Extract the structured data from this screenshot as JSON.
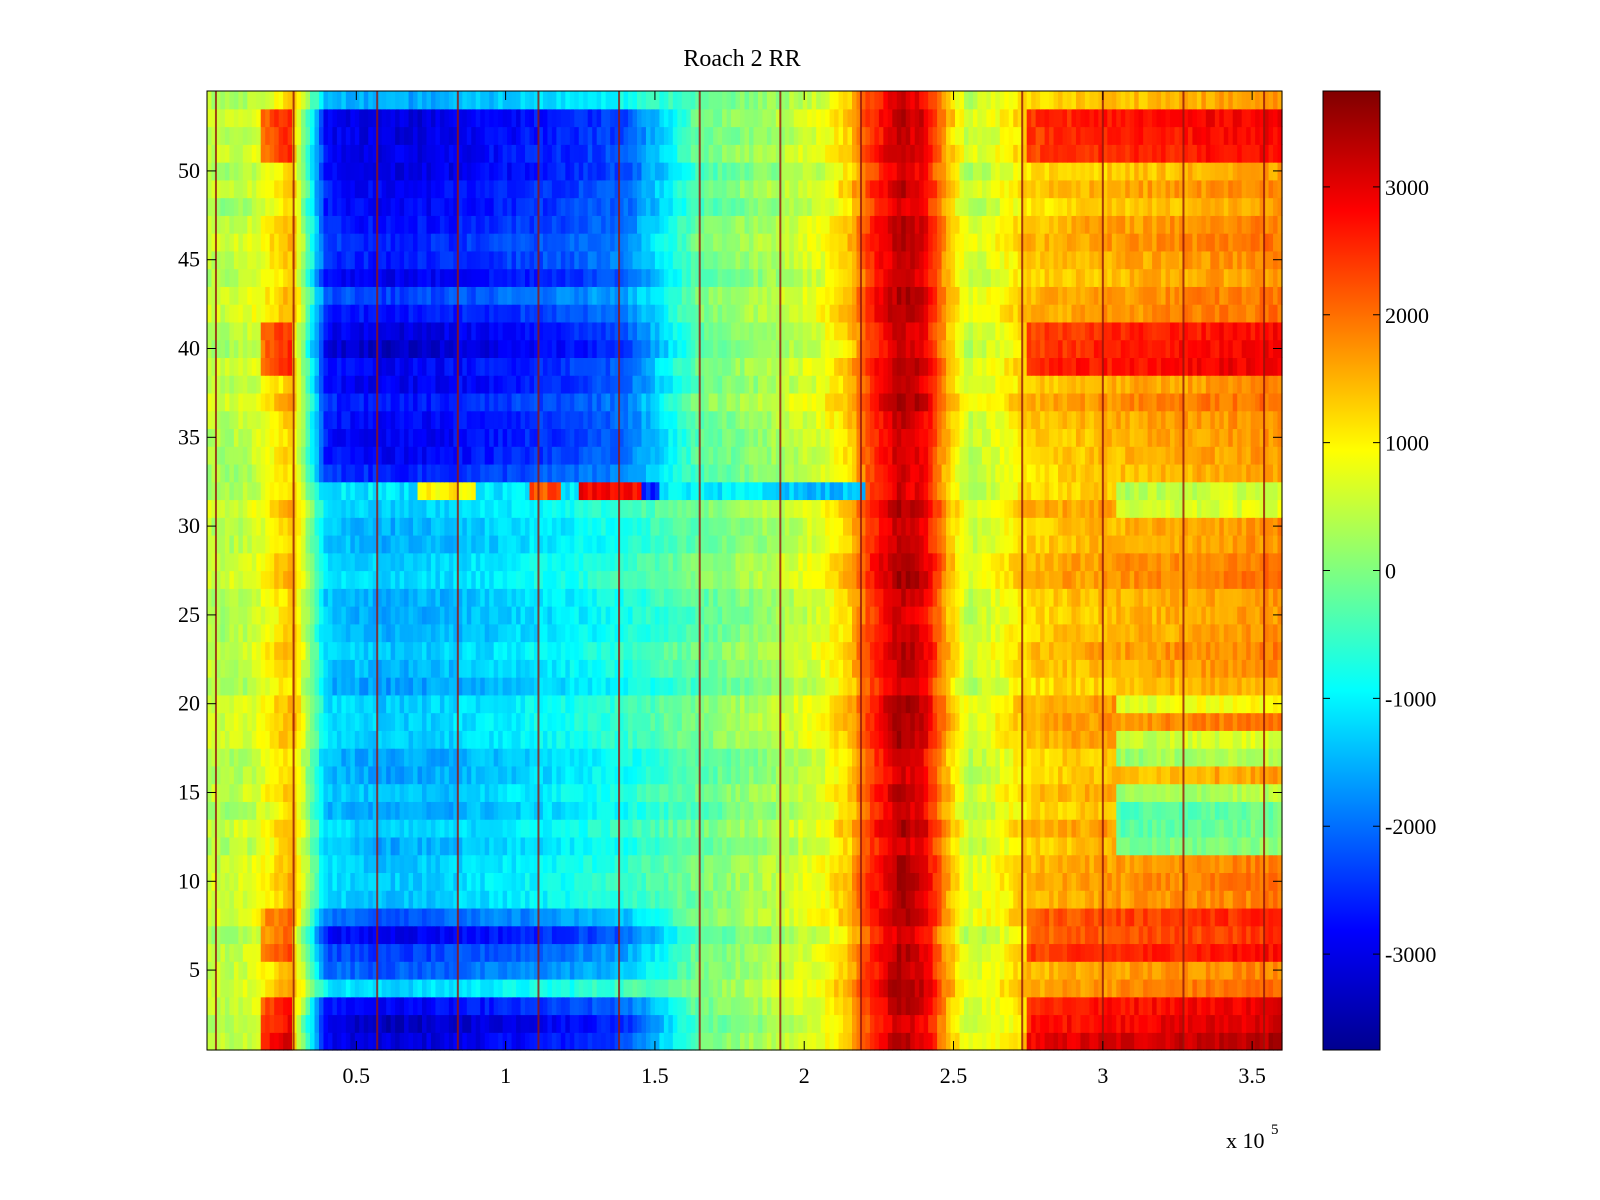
{
  "chart_data": {
    "type": "heatmap",
    "title": "Roach 2 RR",
    "xlabel": "",
    "ylabel": "",
    "x_multiplier_label": "x 10",
    "x_multiplier_exponent": "5",
    "xlim": [
      0,
      360000
    ],
    "ylim": [
      0.5,
      54.5
    ],
    "x_ticks": [
      {
        "value": 50000,
        "label": "0.5"
      },
      {
        "value": 100000,
        "label": "1"
      },
      {
        "value": 150000,
        "label": "1.5"
      },
      {
        "value": 200000,
        "label": "2"
      },
      {
        "value": 250000,
        "label": "2.5"
      },
      {
        "value": 300000,
        "label": "3"
      },
      {
        "value": 350000,
        "label": "3.5"
      }
    ],
    "y_ticks": [
      {
        "value": 5,
        "label": "5"
      },
      {
        "value": 10,
        "label": "10"
      },
      {
        "value": 15,
        "label": "15"
      },
      {
        "value": 20,
        "label": "20"
      },
      {
        "value": 25,
        "label": "25"
      },
      {
        "value": 30,
        "label": "30"
      },
      {
        "value": 35,
        "label": "35"
      },
      {
        "value": 40,
        "label": "40"
      },
      {
        "value": 45,
        "label": "45"
      },
      {
        "value": 50,
        "label": "50"
      }
    ],
    "colorbar": {
      "colormap": "jet",
      "clim": [
        -3750,
        3750
      ],
      "ticks": [
        {
          "value": 3000,
          "label": "3000"
        },
        {
          "value": 2000,
          "label": "2000"
        },
        {
          "value": 1000,
          "label": "1000"
        },
        {
          "value": 0,
          "label": "0"
        },
        {
          "value": -1000,
          "label": "-1000"
        },
        {
          "value": -2000,
          "label": "-2000"
        },
        {
          "value": -3000,
          "label": "-3000"
        }
      ]
    },
    "rows": 54,
    "column_x": [
      0,
      5000,
      15000,
      25000,
      29000,
      40000,
      60000,
      80000,
      100000,
      120000,
      140000,
      160000,
      175000,
      190000,
      205000,
      215000,
      222000,
      232000,
      240000,
      248000,
      255000,
      265000,
      275000,
      285000,
      300000,
      320000,
      340000,
      360000
    ],
    "column_profile": [
      500,
      350,
      550,
      1200,
      1400,
      -1300,
      -1500,
      -1400,
      -1200,
      -1000,
      -700,
      -300,
      0,
      300,
      700,
      1300,
      2400,
      3300,
      3000,
      1500,
      500,
      800,
      1300,
      1400,
      1500,
      1600,
      1700,
      1800
    ],
    "blue_band_rows": [
      {
        "row": 1,
        "strength": 1.0
      },
      {
        "row": 2,
        "strength": 1.0
      },
      {
        "row": 3,
        "strength": 0.85
      },
      {
        "row": 5,
        "strength": 0.45
      },
      {
        "row": 6,
        "strength": 0.6
      },
      {
        "row": 7,
        "strength": 0.75
      },
      {
        "row": 8,
        "strength": 0.5
      },
      {
        "row": 33,
        "strength": 0.55
      },
      {
        "row": 34,
        "strength": 0.75
      },
      {
        "row": 35,
        "strength": 0.8
      },
      {
        "row": 36,
        "strength": 0.8
      },
      {
        "row": 37,
        "strength": 0.85
      },
      {
        "row": 38,
        "strength": 0.85
      },
      {
        "row": 39,
        "strength": 0.9
      },
      {
        "row": 40,
        "strength": 0.95
      },
      {
        "row": 41,
        "strength": 0.9
      },
      {
        "row": 42,
        "strength": 0.85
      },
      {
        "row": 43,
        "strength": 0.6
      },
      {
        "row": 44,
        "strength": 0.8
      },
      {
        "row": 45,
        "strength": 0.7
      },
      {
        "row": 46,
        "strength": 0.75
      },
      {
        "row": 47,
        "strength": 0.8
      },
      {
        "row": 48,
        "strength": 0.7
      },
      {
        "row": 49,
        "strength": 0.85
      },
      {
        "row": 50,
        "strength": 0.8
      },
      {
        "row": 51,
        "strength": 0.95
      },
      {
        "row": 52,
        "strength": 0.9
      },
      {
        "row": 53,
        "strength": 1.0
      }
    ],
    "red_band_rows": [
      {
        "row": 1,
        "strength": 1.0
      },
      {
        "row": 2,
        "strength": 0.95
      },
      {
        "row": 3,
        "strength": 0.75
      },
      {
        "row": 6,
        "strength": 0.6
      },
      {
        "row": 7,
        "strength": 0.55
      },
      {
        "row": 8,
        "strength": 0.4
      },
      {
        "row": 39,
        "strength": 0.7
      },
      {
        "row": 40,
        "strength": 0.8
      },
      {
        "row": 41,
        "strength": 0.7
      },
      {
        "row": 51,
        "strength": 0.6
      },
      {
        "row": 52,
        "strength": 0.75
      },
      {
        "row": 53,
        "strength": 0.7
      }
    ],
    "cool_right_rows": [
      {
        "row": 12,
        "strength": 0.8
      },
      {
        "row": 13,
        "strength": 1.0
      },
      {
        "row": 14,
        "strength": 0.9
      },
      {
        "row": 15,
        "strength": 0.7
      },
      {
        "row": 17,
        "strength": 0.6
      },
      {
        "row": 18,
        "strength": 0.6
      },
      {
        "row": 20,
        "strength": 0.5
      },
      {
        "row": 31,
        "strength": 0.6
      },
      {
        "row": 32,
        "strength": 0.5
      }
    ],
    "anomaly_row": {
      "row": 32,
      "x_start": 40000,
      "x_end": 220000,
      "segments": [
        {
          "x": [
            70000,
            90000
          ],
          "value": 1000
        },
        {
          "x": [
            108000,
            118000
          ],
          "value": 2200
        },
        {
          "x": [
            125000,
            145000
          ],
          "value": 2800
        },
        {
          "x": [
            145000,
            152000
          ],
          "value": -2500
        },
        {
          "x": [
            190000,
            220000
          ],
          "value": -1400
        }
      ]
    },
    "vertical_line_x": [
      3000,
      29000,
      57000,
      84000,
      111000,
      138000,
      165000,
      192000,
      219000,
      273000,
      300000,
      327000,
      354000
    ]
  }
}
